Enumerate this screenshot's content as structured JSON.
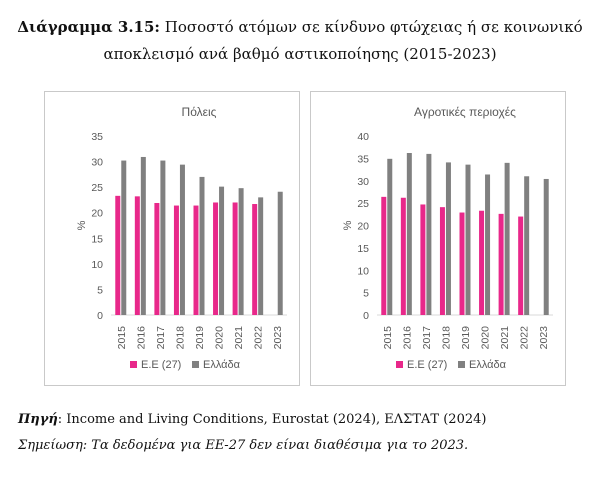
{
  "title": {
    "lead": "Διάγραμμα 3.15:",
    "text": "Ποσοστό ατόμων σε κίνδυνο φτώχειας ή σε κοινωνικό",
    "line2": "αποκλεισμό ανά βαθμό αστικοποίησης (2015-2023)"
  },
  "colors": {
    "eu": "#e8288a",
    "greece": "#808080"
  },
  "chart_data": [
    {
      "type": "bar",
      "title": "Πόλεις",
      "ylabel": "%",
      "categories": [
        "2015",
        "2016",
        "2017",
        "2018",
        "2019",
        "2020",
        "2021",
        "2022",
        "2023"
      ],
      "ylim": [
        0,
        35
      ],
      "yticks": [
        "0",
        "5",
        "10",
        "15",
        "20",
        "25",
        "30",
        "35"
      ],
      "grid": false,
      "legend": "bottom",
      "series": [
        {
          "name": "Ε.Ε (27)",
          "values": [
            23.3,
            23.2,
            21.9,
            21.4,
            21.4,
            22.0,
            22.0,
            21.7,
            null
          ]
        },
        {
          "name": "Ελλάδα",
          "values": [
            30.2,
            30.9,
            30.2,
            29.4,
            27.0,
            25.1,
            24.8,
            23.0,
            24.1
          ]
        }
      ]
    },
    {
      "type": "bar",
      "title": "Αγροτικές περιοχές",
      "ylabel": "%",
      "categories": [
        "2015",
        "2016",
        "2017",
        "2018",
        "2019",
        "2020",
        "2021",
        "2022",
        "2023"
      ],
      "ylim": [
        0,
        40
      ],
      "yticks": [
        "0",
        "5",
        "10",
        "15",
        "20",
        "25",
        "30",
        "35",
        "40"
      ],
      "grid": false,
      "legend": "bottom",
      "series": [
        {
          "name": "Ε.Ε (27)",
          "values": [
            26.4,
            26.2,
            24.7,
            24.1,
            22.9,
            23.3,
            22.6,
            22.0,
            null
          ]
        },
        {
          "name": "Ελλάδα",
          "values": [
            34.9,
            36.2,
            36.0,
            34.1,
            33.6,
            31.4,
            34.0,
            31.0,
            30.4
          ]
        }
      ]
    }
  ],
  "source": {
    "label": "Πηγή",
    "text": ": Income and Living Conditions, Eurostat (2024), ΕΛΣΤΑΤ (2024)"
  },
  "note": "Σημείωση: Τα δεδομένα για ΕΕ-27 δεν είναι διαθέσιμα για το 2023."
}
